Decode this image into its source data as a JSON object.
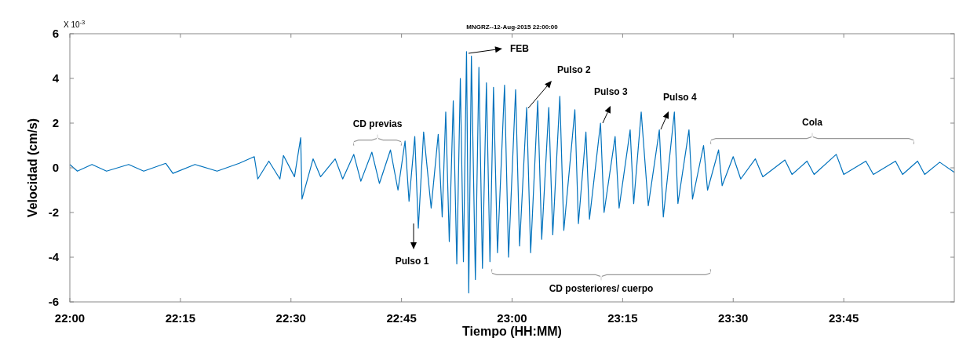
{
  "chart_data": {
    "type": "line",
    "title": "MNGRZ--12-Aug-2015 22:00:00",
    "xlabel": "Tiempo (HH:MM)",
    "ylabel": "Velocidad (cm/s)",
    "xlim": [
      22,
      24
    ],
    "xticks": [
      {
        "value": 22,
        "label": "22:00"
      },
      {
        "value": 22.25,
        "label": "22:15"
      },
      {
        "value": 22.5,
        "label": "22:30"
      },
      {
        "value": 22.75,
        "label": "22:45"
      },
      {
        "value": 23,
        "label": "23:00"
      },
      {
        "value": 23.25,
        "label": "23:15"
      },
      {
        "value": 23.5,
        "label": "23:30"
      },
      {
        "value": 23.75,
        "label": "23:45"
      }
    ],
    "ylim": [
      -6,
      6
    ],
    "yticks": [
      -6,
      -4,
      -2,
      0,
      2,
      4,
      6
    ],
    "grid": false,
    "marker": "none",
    "line_style": "solid",
    "annotations": [
      "CD previas",
      "FEB",
      "Pulso 2",
      "Pulso 3",
      "Pulso 4",
      "Pulso 1",
      "Cola",
      "CD posteriores/ cuerpo",
      "X 10$^{-3}$"
    ],
    "series": [
      {
        "color": "#0072bd",
        "x": [
          22,
          22.017,
          22.05,
          22.083,
          22.133,
          22.167,
          22.217,
          22.233,
          22.283,
          22.333,
          22.383,
          22.417,
          22.425,
          22.45,
          22.475,
          22.483,
          22.508,
          22.522,
          22.525,
          22.55,
          22.567,
          22.6,
          22.617,
          22.642,
          22.658,
          22.683,
          22.7,
          22.725,
          22.742,
          22.758,
          22.767,
          22.78,
          22.788,
          22.8,
          22.817,
          22.833,
          22.842,
          22.85,
          22.858,
          22.867,
          22.875,
          22.883,
          22.89,
          22.897,
          22.902,
          22.908,
          22.917,
          22.925,
          22.933,
          22.942,
          22.95,
          22.958,
          22.967,
          22.983,
          22.992,
          23.008,
          23.017,
          23.033,
          23.042,
          23.058,
          23.067,
          23.083,
          23.092,
          23.108,
          23.117,
          23.142,
          23.15,
          23.167,
          23.175,
          23.2,
          23.208,
          23.233,
          23.242,
          23.267,
          23.275,
          23.292,
          23.308,
          23.333,
          23.342,
          23.367,
          23.375,
          23.4,
          23.408,
          23.433,
          23.442,
          23.467,
          23.475,
          23.5,
          23.517,
          23.55,
          23.567,
          23.617,
          23.633,
          23.667,
          23.683,
          23.733,
          23.75,
          23.8,
          23.817,
          23.867,
          23.883,
          23.917,
          23.933,
          23.967,
          24
        ],
        "values": [
          0.15,
          -0.15,
          0.15,
          -0.15,
          0.15,
          -0.15,
          0.2,
          -0.25,
          0.15,
          -0.15,
          0.2,
          0.5,
          -0.5,
          0.3,
          -0.5,
          0.55,
          -0.4,
          1.35,
          -1.4,
          0.4,
          -0.4,
          0.4,
          -0.5,
          0.6,
          -0.6,
          0.7,
          -0.7,
          0.8,
          -1.0,
          1.2,
          -1.5,
          1.4,
          -2.7,
          1.6,
          -1.8,
          1.5,
          -2.2,
          2.5,
          -3.3,
          3.0,
          -4.3,
          4.0,
          -4.2,
          5.2,
          -5.6,
          5.0,
          -5.0,
          4.5,
          -4.5,
          3.8,
          -4.2,
          3.6,
          -3.8,
          3.7,
          -4.0,
          3.5,
          -3.5,
          2.7,
          -3.8,
          3.0,
          -3.2,
          2.7,
          -3.0,
          3.2,
          -2.8,
          2.6,
          -2.5,
          1.6,
          -2.3,
          2.0,
          -2.0,
          1.4,
          -1.8,
          1.7,
          -1.6,
          2.5,
          -1.7,
          1.7,
          -2.2,
          2.5,
          -1.6,
          1.7,
          -1.4,
          1.0,
          -1.0,
          0.8,
          -0.8,
          0.5,
          -0.5,
          0.4,
          -0.4,
          0.35,
          -0.3,
          0.3,
          -0.3,
          0.6,
          -0.3,
          0.3,
          -0.3,
          0.3,
          -0.3,
          0.3,
          -0.3,
          0.25,
          -0.2
        ]
      }
    ]
  }
}
